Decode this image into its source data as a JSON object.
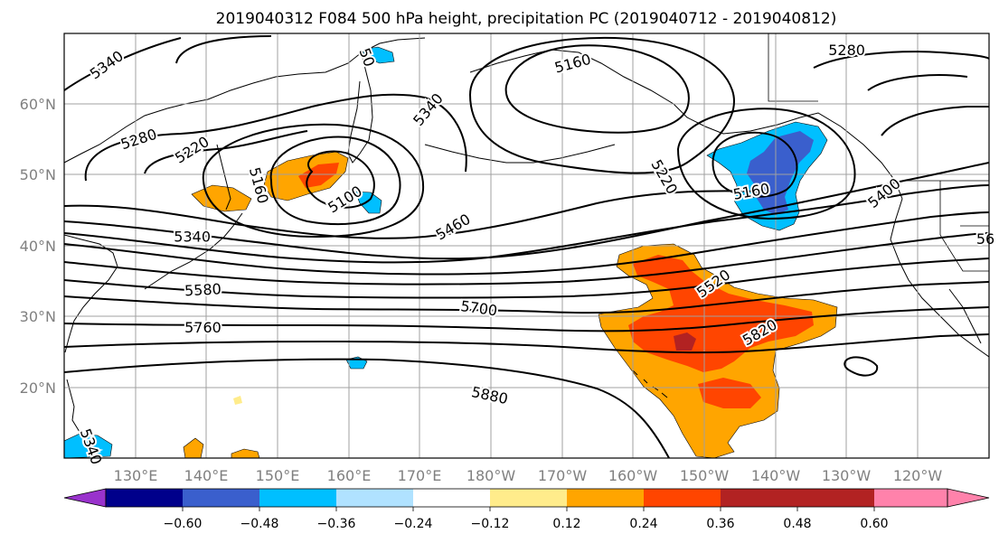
{
  "title": "2019040312 F084 500 hPa height, precipitation PC (2019040712 - 2019040812)",
  "map": {
    "x_ticks": [
      "130°E",
      "140°E",
      "150°E",
      "160°E",
      "170°E",
      "180°W",
      "170°W",
      "160°W",
      "150°W",
      "140°W",
      "130°W",
      "120°W"
    ],
    "y_ticks": [
      "20°N",
      "30°N",
      "40°N",
      "50°N",
      "60°N"
    ],
    "lon_range_east": [
      120,
      250
    ],
    "lat_range": [
      10,
      70
    ],
    "gridlines": true,
    "tick_color": "#808080"
  },
  "contours": {
    "color": "#000000",
    "labels": [
      {
        "text": "5340",
        "lon": 126,
        "lat": 65.5,
        "rot": -36
      },
      {
        "text": "5280",
        "lon": 130.5,
        "lat": 55,
        "rot": -18
      },
      {
        "text": "5220",
        "lon": 138,
        "lat": 53.5,
        "rot": -32
      },
      {
        "text": "5160",
        "lon": 147.3,
        "lat": 48.5,
        "rot": 75
      },
      {
        "text": "5100",
        "lon": 159.5,
        "lat": 46.5,
        "rot": -32
      },
      {
        "text": "5340",
        "lon": 138,
        "lat": 41.2,
        "rot": 0
      },
      {
        "text": "5580",
        "lon": 139.5,
        "lat": 33.7,
        "rot": -3
      },
      {
        "text": "5760",
        "lon": 139.5,
        "lat": 28.4,
        "rot": 0
      },
      {
        "text": "5700",
        "lon": 178.3,
        "lat": 31.1,
        "rot": 8
      },
      {
        "text": "5880",
        "lon": 179.8,
        "lat": 18.8,
        "rot": 12
      },
      {
        "text": "5340",
        "lon": 171.2,
        "lat": 59.2,
        "rot": -50
      },
      {
        "text": "5460",
        "lon": 174.7,
        "lat": 42.6,
        "rot": -30
      },
      {
        "text": "5160",
        "lon": 191.5,
        "lat": 65.7,
        "rot": -15
      },
      {
        "text": "5220",
        "lon": 204.3,
        "lat": 49.7,
        "rot": 60
      },
      {
        "text": "5160",
        "lon": 216.6,
        "lat": 47.6,
        "rot": -10
      },
      {
        "text": "5520",
        "lon": 211.3,
        "lat": 34.6,
        "rot": -35
      },
      {
        "text": "5820",
        "lon": 217.8,
        "lat": 27.7,
        "rot": -30
      },
      {
        "text": "5280",
        "lon": 230,
        "lat": 67.6,
        "rot": 0
      },
      {
        "text": "5400",
        "lon": 235.3,
        "lat": 47.4,
        "rot": -40
      },
      {
        "text": "56",
        "lon": 249.5,
        "lat": 40.9,
        "rot": 0
      },
      {
        "text": "50",
        "lon": 162.5,
        "lat": 66.6,
        "rot": 70
      },
      {
        "text": "5340",
        "lon": 123.7,
        "lat": 11.6,
        "rot": 70
      }
    ]
  },
  "colorbar": {
    "colors": [
      "#9932CC",
      "#00008B",
      "#3A5FCD",
      "#00BFFF",
      "#B0E2FF",
      "#FFFFFF",
      "#FFEC8B",
      "#FFA500",
      "#FF4500",
      "#B22222",
      "#FF82AB"
    ],
    "labels": [
      "−0.60",
      "−0.48",
      "−0.36",
      "−0.24",
      "−0.12",
      "0.12",
      "0.24",
      "0.36",
      "0.48",
      "0.60"
    ],
    "ticks": [
      -0.6,
      -0.48,
      -0.36,
      -0.24,
      -0.12,
      0.12,
      0.24,
      0.36,
      0.48,
      0.6
    ]
  },
  "legend_colors": {
    "orange_light": "#FFA500",
    "orange_red": "#FF4500",
    "dark_red": "#B22222",
    "light_yellow": "#FFEC8B",
    "sky_blue": "#00BFFF",
    "royal_blue": "#3A5FCD",
    "land_outline": "#000000",
    "grid": "#A0A0A0"
  }
}
